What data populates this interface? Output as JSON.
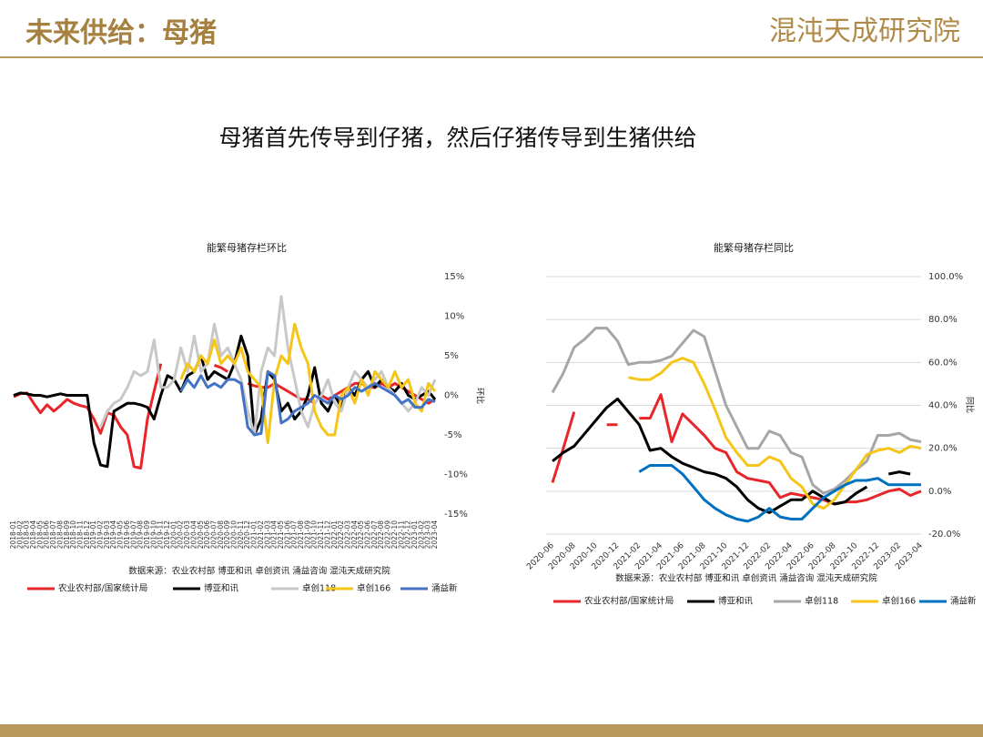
{
  "header": {
    "title": "未来供给：母猪",
    "logo": "混沌天成研究院"
  },
  "subtitle": "母猪首先传导到仔猪，然后仔猪传导到生猪供给",
  "chart_data": [
    {
      "type": "line",
      "title": "能繁母猪存栏环比",
      "y_label": "环比",
      "source": "数据来源：农业农村部 博亚和讯 卓创资讯 涌益咨询 混沌天成研究院",
      "categories": [
        "2018-01",
        "2018-02",
        "2018-03",
        "2018-04",
        "2018-05",
        "2018-06",
        "2018-07",
        "2018-08",
        "2018-09",
        "2018-10",
        "2018-11",
        "2018-12",
        "2019-01",
        "2019-02",
        "2019-03",
        "2019-04",
        "2019-05",
        "2019-06",
        "2019-07",
        "2019-08",
        "2019-09",
        "2019-10",
        "2019-11",
        "2019-12",
        "2020-01",
        "2020-02",
        "2020-03",
        "2020-04",
        "2020-05",
        "2020-06",
        "2020-07",
        "2020-08",
        "2020-09",
        "2020-10",
        "2020-11",
        "2020-12",
        "2021-01",
        "2021-02",
        "2021-03",
        "2021-04",
        "2021-05",
        "2021-06",
        "2021-07",
        "2021-08",
        "2021-09",
        "2021-10",
        "2021-11",
        "2021-12",
        "2022-01",
        "2022-02",
        "2022-03",
        "2022-04",
        "2022-05",
        "2022-06",
        "2022-07",
        "2022-08",
        "2022-09",
        "2022-10",
        "2022-11",
        "2022-12",
        "2023-01",
        "2023-02",
        "2023-03",
        "2023-04"
      ],
      "ylim": [
        -15,
        15
      ],
      "yticks": [
        {
          "value": 15,
          "label": "15%"
        },
        {
          "value": 10,
          "label": "10%"
        },
        {
          "value": 5,
          "label": "5%"
        },
        {
          "value": 0,
          "label": "0%"
        },
        {
          "value": -5,
          "label": "-5%"
        },
        {
          "value": -10,
          "label": "-10%"
        },
        {
          "value": -15,
          "label": "-15%"
        }
      ],
      "grid": false,
      "series": [
        {
          "name": "农业农村部/国家统计局",
          "color": "#e8262a",
          "values": [
            -0.2,
            0.2,
            0.3,
            -1,
            -2.2,
            -1.2,
            -2,
            -1.3,
            -0.5,
            -1,
            -1.3,
            -1.5,
            -3,
            -4.8,
            -2.2,
            -2.5,
            -4,
            -5,
            -9,
            -9.2,
            -3,
            0.5,
            4,
            null,
            null,
            null,
            null,
            null,
            null,
            null,
            3.8,
            3.5,
            3,
            null,
            null,
            1.5,
            1.2,
            1,
            1,
            1.5,
            1,
            0.5,
            0,
            -0.5,
            -0.5,
            -1,
            0,
            -0.5,
            0,
            0.5,
            1,
            1.5,
            1.5,
            1,
            1,
            1.5,
            1,
            1.5,
            1,
            0.5,
            0,
            -0.5,
            -1,
            -0.5
          ]
        },
        {
          "name": "博亚和讯",
          "color": "#000000",
          "values": [
            0,
            0.3,
            0.2,
            0,
            0,
            -0.2,
            0,
            0.2,
            0,
            0,
            0,
            0,
            -6,
            -8.8,
            -9,
            -2,
            -1.5,
            -1,
            -1,
            -1.2,
            -1.5,
            -3,
            0,
            2.5,
            2,
            0.5,
            2.5,
            3,
            5,
            2,
            3,
            2.5,
            2,
            4,
            7.5,
            5,
            -5,
            -3,
            3,
            2,
            -2,
            -1,
            -3,
            -2,
            0,
            3.5,
            -1,
            -2,
            0,
            -1.5,
            1,
            0,
            2,
            3,
            1,
            2,
            1,
            0.5,
            1.5,
            0,
            -0.5,
            0,
            0.5,
            -0.5
          ]
        },
        {
          "name": "卓创118",
          "color": "#c8c8c8",
          "values": [
            null,
            null,
            null,
            null,
            null,
            null,
            null,
            null,
            null,
            null,
            null,
            null,
            null,
            -4,
            -2,
            -1,
            -0.5,
            1,
            3,
            2.5,
            3,
            7,
            1,
            1,
            2,
            6,
            3,
            7.5,
            3,
            4,
            9,
            5,
            6,
            4,
            2,
            -2,
            -5,
            3,
            6,
            5,
            12.5,
            6,
            2,
            -2,
            -4,
            -1,
            0,
            2,
            -1,
            -2,
            1,
            3,
            2,
            1,
            2,
            3,
            1,
            0,
            -1,
            -2,
            -1,
            1,
            0,
            2
          ]
        },
        {
          "name": "卓创166",
          "color": "#f5c518",
          "values": [
            null,
            null,
            null,
            null,
            null,
            null,
            null,
            null,
            null,
            null,
            null,
            null,
            null,
            null,
            null,
            null,
            null,
            null,
            null,
            null,
            null,
            null,
            null,
            null,
            null,
            2,
            4,
            3,
            5,
            4,
            7,
            4,
            5,
            4,
            6,
            3,
            2,
            1,
            -6,
            2,
            5,
            4,
            9,
            6,
            4,
            -2,
            -4,
            -5,
            -5,
            0,
            1,
            -1,
            2,
            0,
            3,
            2,
            1,
            3,
            1,
            2,
            -1,
            -2,
            1.5,
            0.5
          ]
        },
        {
          "name": "涌益新",
          "color": "#4472c4",
          "values": [
            null,
            null,
            null,
            null,
            null,
            null,
            null,
            null,
            null,
            null,
            null,
            null,
            null,
            null,
            null,
            null,
            null,
            null,
            null,
            null,
            null,
            null,
            null,
            null,
            null,
            0.5,
            2,
            1,
            2.5,
            1,
            1.5,
            1,
            2,
            2,
            1.5,
            -4,
            -5,
            -4.8,
            3,
            2.5,
            -3.5,
            -3,
            -2,
            -1.5,
            -1,
            0,
            -0.5,
            -1,
            0,
            -0.5,
            0,
            1,
            0.5,
            1,
            1.5,
            1,
            0.5,
            0,
            -1,
            -0.5,
            -1.5,
            -1.5,
            -0.5,
            -0.8
          ]
        }
      ]
    },
    {
      "type": "line",
      "title": "能繁母猪存栏同比",
      "y_label": "同比",
      "source": "数据来源：农业农村部 博亚和讯 卓创资讯 涌益咨询 混沌天成研究院",
      "categories": [
        "2020-06",
        null,
        "2020-08",
        null,
        "2020-10",
        null,
        "2020-12",
        null,
        "2021-02",
        null,
        "2021-04",
        null,
        "2021-06",
        null,
        "2021-08",
        null,
        "2021-10",
        null,
        "2021-12",
        null,
        "2022-02",
        null,
        "2022-04",
        null,
        "2022-06",
        null,
        "2022-08",
        null,
        "2022-10",
        null,
        "2022-12",
        null,
        "2023-02",
        null,
        "2023-04"
      ],
      "ylim": [
        -20,
        100
      ],
      "yticks": [
        {
          "value": 100,
          "label": "100.0%"
        },
        {
          "value": 80,
          "label": "80.0%"
        },
        {
          "value": 60,
          "label": "60.0%"
        },
        {
          "value": 40,
          "label": "40.0%"
        },
        {
          "value": 20,
          "label": "20.0%"
        },
        {
          "value": 0,
          "label": "0.0%"
        },
        {
          "value": -20,
          "label": "-20.0%"
        }
      ],
      "grid": true,
      "series": [
        {
          "name": "农业农村部/国家统计局",
          "color": "#e8262a",
          "values": [
            4,
            20,
            37,
            null,
            null,
            31,
            31,
            null,
            34,
            34,
            45,
            23,
            36,
            31,
            26,
            20,
            18,
            9,
            6,
            5,
            4,
            -3,
            -1,
            -2,
            -3,
            -4,
            -6,
            -5,
            -5,
            -4,
            -2,
            0,
            1,
            -2,
            0
          ]
        },
        {
          "name": "博亚和讯",
          "color": "#000000",
          "values": [
            14,
            18,
            21,
            27,
            33,
            39,
            43,
            37,
            31,
            19,
            20,
            16,
            13,
            11,
            9,
            8,
            6,
            2,
            -4,
            -8,
            -10,
            -7,
            -4,
            -4,
            0,
            -3,
            -6,
            -5,
            -1,
            2,
            null,
            8,
            9,
            8,
            null
          ]
        },
        {
          "name": "卓创118",
          "color": "#a6a6a6",
          "values": [
            46,
            55,
            67,
            71,
            76,
            76,
            70,
            59,
            60,
            60,
            61,
            63,
            69,
            75,
            72,
            56,
            40,
            30,
            20,
            20,
            28,
            26,
            18,
            16,
            3,
            -1,
            1,
            5,
            10,
            14,
            26,
            26,
            27,
            24,
            23
          ]
        },
        {
          "name": "卓创166",
          "color": "#f5c518",
          "values": [
            null,
            null,
            null,
            null,
            null,
            null,
            null,
            53,
            52,
            52,
            55,
            60,
            62,
            60,
            50,
            38,
            25,
            18,
            12,
            12,
            16,
            14,
            6,
            2,
            -6,
            -8,
            -4,
            3,
            10,
            17,
            19,
            20,
            18,
            21,
            20
          ]
        },
        {
          "name": "涌益新",
          "color": "#0070c0",
          "values": [
            null,
            null,
            null,
            null,
            null,
            null,
            null,
            null,
            9,
            12,
            12,
            12,
            8,
            2,
            -4,
            -8,
            -11,
            -13,
            -14,
            -12,
            -8,
            -12,
            -13,
            -13,
            -8,
            -3,
            0,
            3,
            5,
            5,
            6,
            3,
            3,
            3,
            3
          ]
        }
      ]
    }
  ]
}
